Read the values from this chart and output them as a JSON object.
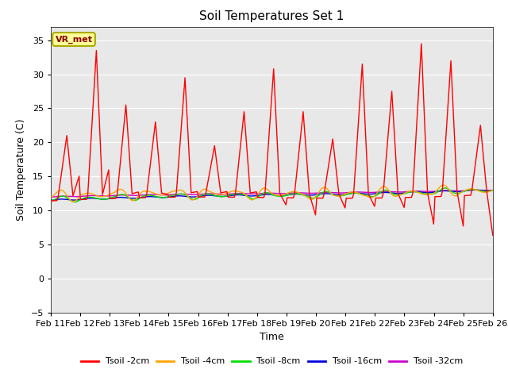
{
  "title": "Soil Temperatures Set 1",
  "xlabel": "Time",
  "ylabel": "Soil Temperature (C)",
  "ylim": [
    -5,
    37
  ],
  "yticks": [
    -5,
    0,
    5,
    10,
    15,
    20,
    25,
    30,
    35
  ],
  "bg_color": "#e8e8e8",
  "annotation_label": "VR_met",
  "series_colors": {
    "Tsoil -2cm": "#ff0000",
    "Tsoil -4cm": "#ffa500",
    "Tsoil -8cm": "#00dd00",
    "Tsoil -16cm": "#0000dd",
    "Tsoil -32cm": "#cc00cc"
  },
  "x_labels": [
    "Feb 11",
    "Feb 12",
    "Feb 13",
    "Feb 14",
    "Feb 15",
    "Feb 16",
    "Feb 17",
    "Feb 18",
    "Feb 19",
    "Feb 20",
    "Feb 21",
    "Feb 22",
    "Feb 23",
    "Feb 24",
    "Feb 25",
    "Feb 26"
  ],
  "num_days": 15,
  "pts_per_day": 24
}
